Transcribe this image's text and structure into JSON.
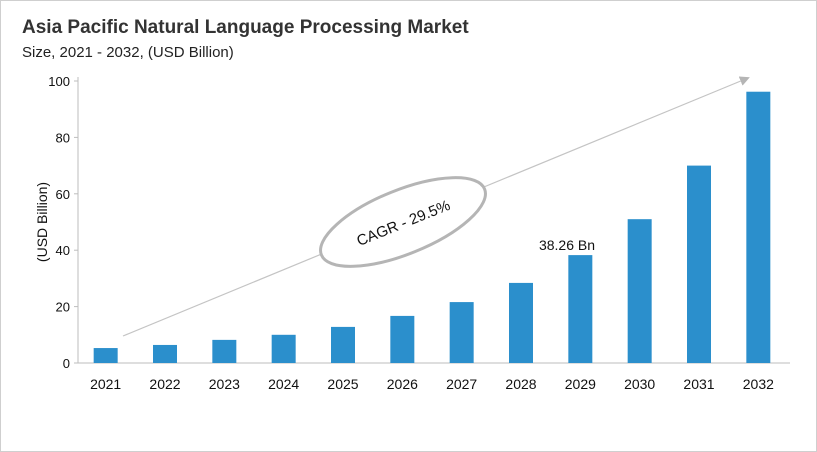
{
  "title": "Asia Pacific Natural Language Processing Market",
  "subtitle": "Size, 2021 - 2032, (USD Billion)",
  "chart_data": {
    "type": "bar",
    "title": "Asia Pacific Natural Language Processing Market",
    "subtitle": "Size, 2021 - 2032, (USD Billion)",
    "xlabel": "",
    "ylabel": "(USD Billion)",
    "ylim": [
      0,
      100
    ],
    "yticks": [
      0,
      20,
      40,
      60,
      80,
      100
    ],
    "categories": [
      "2021",
      "2022",
      "2023",
      "2024",
      "2025",
      "2026",
      "2027",
      "2028",
      "2029",
      "2030",
      "2031",
      "2032"
    ],
    "values": [
      5.3,
      6.4,
      8.2,
      10.0,
      12.8,
      16.7,
      21.6,
      28.4,
      38.26,
      51.0,
      70.0,
      96.2
    ],
    "bar_color": "#2b8fcc",
    "grid": false,
    "annotations": {
      "data_label": "38.26 Bn",
      "data_label_category": "2029",
      "cagr": "CAGR - 29.5%"
    }
  }
}
